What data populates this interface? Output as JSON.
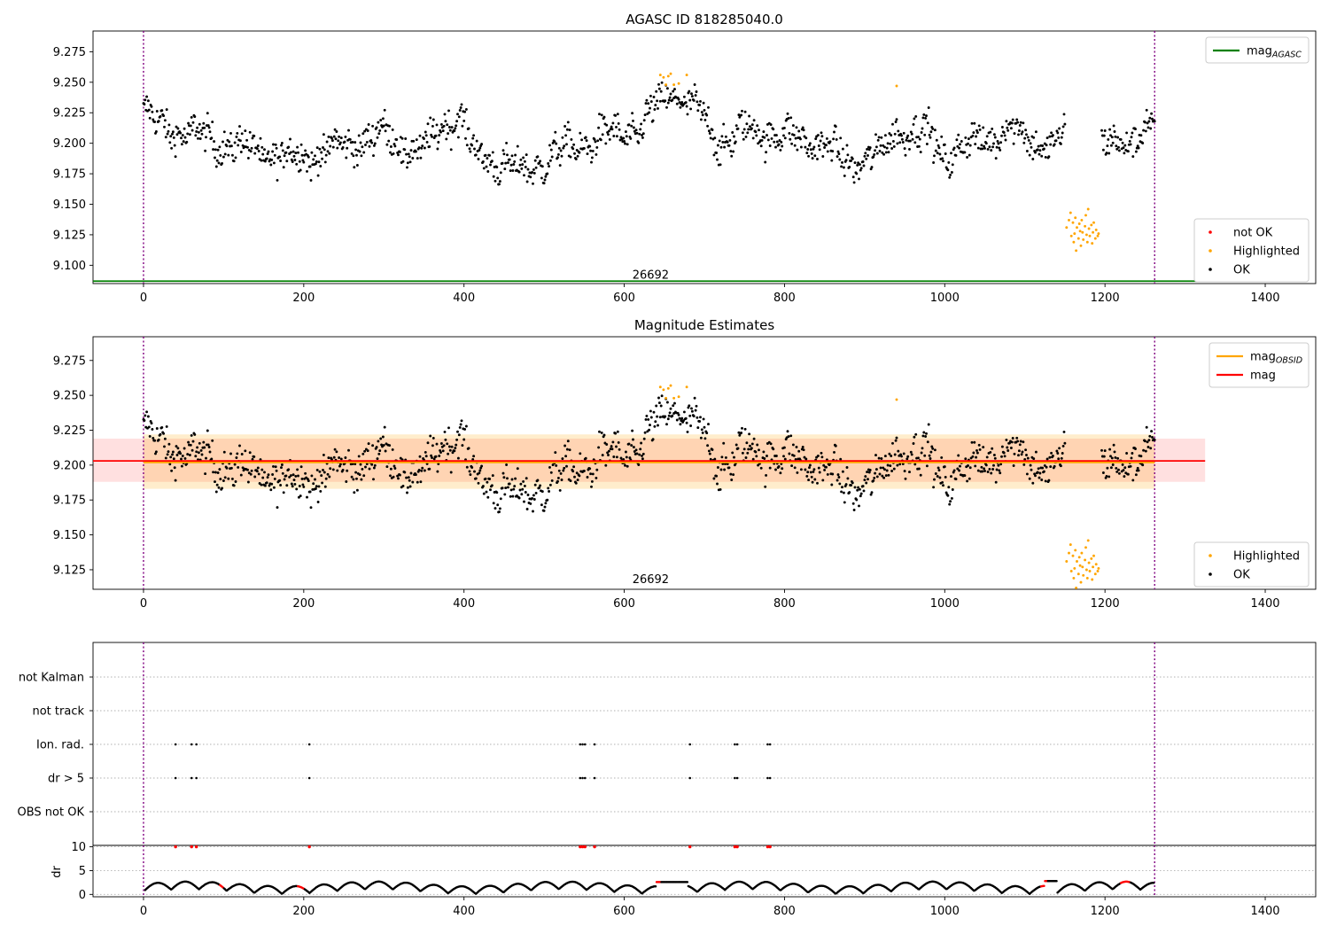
{
  "chart_data": [
    {
      "type": "scatter",
      "title": "AGASC ID 818285040.0",
      "xlim": [
        -63,
        1463
      ],
      "ylim": [
        9.085,
        9.292
      ],
      "yticks": [
        9.1,
        9.125,
        9.15,
        9.175,
        9.2,
        9.225,
        9.25,
        9.275
      ],
      "xticks": [
        0,
        200,
        400,
        600,
        800,
        1000,
        1200,
        1400
      ],
      "obsid_label": {
        "text": "26692",
        "x": 633,
        "y": 9.092
      },
      "vlines": [
        0,
        1262
      ],
      "mag_agasc": 9.087,
      "mag_agasc_span": [
        -63,
        1325
      ],
      "legend_upper": {
        "position": "top-right",
        "entries": [
          {
            "label": "mag",
            "sub": "AGASC",
            "color": "#008000",
            "kind": "line"
          }
        ]
      },
      "legend_lower": {
        "position": "lower-right",
        "entries": [
          {
            "label": "not OK",
            "color": "#ff0000",
            "kind": "dot"
          },
          {
            "label": "Highlighted",
            "color": "#ffa500",
            "kind": "dot"
          },
          {
            "label": "OK",
            "color": "#000000",
            "kind": "dot"
          }
        ]
      },
      "series": [
        {
          "name": "OK",
          "color": "#000000",
          "trend": [
            [
              0,
              9.226
            ],
            [
              20,
              9.214
            ],
            [
              60,
              9.208
            ],
            [
              100,
              9.2
            ],
            [
              140,
              9.194
            ],
            [
              180,
              9.188
            ],
            [
              220,
              9.192
            ],
            [
              260,
              9.2
            ],
            [
              300,
              9.208
            ],
            [
              330,
              9.196
            ],
            [
              350,
              9.192
            ],
            [
              380,
              9.222
            ],
            [
              400,
              9.218
            ],
            [
              410,
              9.192
            ],
            [
              440,
              9.186
            ],
            [
              470,
              9.176
            ],
            [
              500,
              9.186
            ],
            [
              540,
              9.198
            ],
            [
              580,
              9.206
            ],
            [
              620,
              9.212
            ],
            [
              660,
              9.244
            ],
            [
              700,
              9.22
            ],
            [
              720,
              9.2
            ],
            [
              760,
              9.212
            ],
            [
              800,
              9.205
            ],
            [
              840,
              9.202
            ],
            [
              880,
              9.184
            ],
            [
              920,
              9.19
            ],
            [
              940,
              9.212
            ],
            [
              980,
              9.206
            ],
            [
              1000,
              9.19
            ],
            [
              1030,
              9.198
            ],
            [
              1080,
              9.212
            ],
            [
              1120,
              9.2
            ],
            [
              1140,
              9.196
            ],
            [
              1150,
              9.212
            ],
            [
              1155,
              null
            ],
            [
              1195,
              9.196
            ],
            [
              1230,
              9.204
            ],
            [
              1262,
              9.212
            ]
          ],
          "spread": 0.012,
          "gaps": [
            [
              1155,
              1195
            ]
          ]
        },
        {
          "name": "Highlighted",
          "color": "#ffa500",
          "points": [
            [
              645,
              9.256
            ],
            [
              649,
              9.254
            ],
            [
              652,
              9.248
            ],
            [
              655,
              9.255
            ],
            [
              658,
              9.257
            ],
            [
              662,
              9.248
            ],
            [
              668,
              9.249
            ],
            [
              678,
              9.256
            ],
            [
              940,
              9.247
            ],
            [
              1152,
              9.131
            ],
            [
              1155,
              9.137
            ],
            [
              1157,
              9.143
            ],
            [
              1158,
              9.124
            ],
            [
              1160,
              9.135
            ],
            [
              1161,
              9.119
            ],
            [
              1162,
              9.126
            ],
            [
              1163,
              9.139
            ],
            [
              1164,
              9.112
            ],
            [
              1165,
              9.131
            ],
            [
              1167,
              9.122
            ],
            [
              1168,
              9.134
            ],
            [
              1169,
              9.128
            ],
            [
              1170,
              9.116
            ],
            [
              1171,
              9.137
            ],
            [
              1172,
              9.127
            ],
            [
              1173,
              9.121
            ],
            [
              1175,
              9.132
            ],
            [
              1176,
              9.141
            ],
            [
              1177,
              9.125
            ],
            [
              1178,
              9.119
            ],
            [
              1179,
              9.146
            ],
            [
              1180,
              9.13
            ],
            [
              1181,
              9.124
            ],
            [
              1183,
              9.133
            ],
            [
              1184,
              9.118
            ],
            [
              1185,
              9.127
            ],
            [
              1186,
              9.135
            ],
            [
              1188,
              9.122
            ],
            [
              1189,
              9.129
            ],
            [
              1191,
              9.124
            ],
            [
              1192,
              9.126
            ]
          ]
        }
      ]
    },
    {
      "type": "scatter",
      "title": "Magnitude Estimates",
      "xlim": [
        -63,
        1463
      ],
      "ylim": [
        9.111,
        9.292
      ],
      "yticks": [
        9.125,
        9.15,
        9.175,
        9.2,
        9.225,
        9.25,
        9.275
      ],
      "xticks": [
        0,
        200,
        400,
        600,
        800,
        1000,
        1200,
        1400
      ],
      "obsid_label": {
        "text": "26692",
        "x": 633,
        "y": 9.118
      },
      "vlines": [
        0,
        1262
      ],
      "mag": 9.203,
      "mag_band": [
        9.188,
        9.219
      ],
      "mag_obsid": 9.202,
      "mag_obsid_band": [
        9.183,
        9.222
      ],
      "band_span": [
        -63,
        1325
      ],
      "obsid_span": [
        0,
        1262
      ],
      "legend_upper": {
        "position": "top-right",
        "entries": [
          {
            "label": "mag",
            "sub": "OBSID",
            "color": "#ffa500",
            "kind": "line"
          },
          {
            "label": "mag",
            "sub": "",
            "color": "#ff0000",
            "kind": "line"
          }
        ]
      },
      "legend_lower": {
        "position": "lower-right",
        "entries": [
          {
            "label": "Highlighted",
            "color": "#ffa500",
            "kind": "dot"
          },
          {
            "label": "OK",
            "color": "#000000",
            "kind": "dot"
          }
        ]
      }
    },
    {
      "type": "scatter",
      "xlim": [
        -63,
        1463
      ],
      "categories": [
        "not Kalman",
        "not track",
        "Ion. rad.",
        "dr > 5",
        "OBS not OK"
      ],
      "vlines": [
        0,
        1262
      ],
      "flag_times": [
        40,
        60,
        66,
        207,
        545,
        548,
        551,
        563,
        682,
        738,
        741,
        779,
        782
      ],
      "flag_rows": [
        "Ion. rad.",
        "dr > 5"
      ]
    },
    {
      "type": "line",
      "ylabel": "dr",
      "xlim": [
        -63,
        1463
      ],
      "ylim": [
        -0.5,
        10.3
      ],
      "yticks": [
        0,
        5,
        10
      ],
      "xticks": [
        0,
        200,
        400,
        600,
        800,
        1000,
        1200,
        1400
      ],
      "vlines": [
        0,
        1262
      ],
      "flag_value": 10,
      "flag_times": [
        40,
        60,
        66,
        207,
        545,
        548,
        551,
        563,
        682,
        738,
        741,
        779,
        782
      ],
      "red_segments": [
        [
          95,
          100
        ],
        [
          192,
          200
        ],
        [
          640,
          646
        ],
        [
          1120,
          1128
        ],
        [
          1220,
          1232
        ]
      ]
    }
  ]
}
